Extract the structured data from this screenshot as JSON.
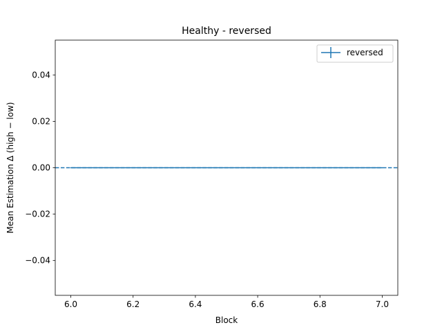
{
  "chart_data": {
    "type": "line",
    "title": "Healthy - reversed",
    "xlabel": "Block",
    "ylabel": "Mean Estimation Δ (high − low)",
    "xlim": [
      5.95,
      7.05
    ],
    "ylim": [
      -0.055,
      0.055
    ],
    "x_ticks": [
      6.0,
      6.2,
      6.4,
      6.6,
      6.8,
      7.0
    ],
    "x_tick_labels": [
      "6.0",
      "6.2",
      "6.4",
      "6.6",
      "6.8",
      "7.0"
    ],
    "y_ticks": [
      -0.04,
      -0.02,
      0.0,
      0.02,
      0.04
    ],
    "y_tick_labels": [
      "−0.04",
      "−0.02",
      "0.00",
      "0.02",
      "0.04"
    ],
    "grid": false,
    "legend_position": "top-right",
    "series": [
      {
        "name": "reversed",
        "color": "#1f77b4",
        "x": [
          6,
          7
        ],
        "y": [
          0.0,
          0.0
        ],
        "yerr": [
          0.0,
          0.0
        ],
        "errorbar": true
      }
    ],
    "reference_lines": [
      {
        "orientation": "horizontal",
        "y": 0.0,
        "style": "dashed",
        "color": "#1f77b4"
      }
    ]
  }
}
